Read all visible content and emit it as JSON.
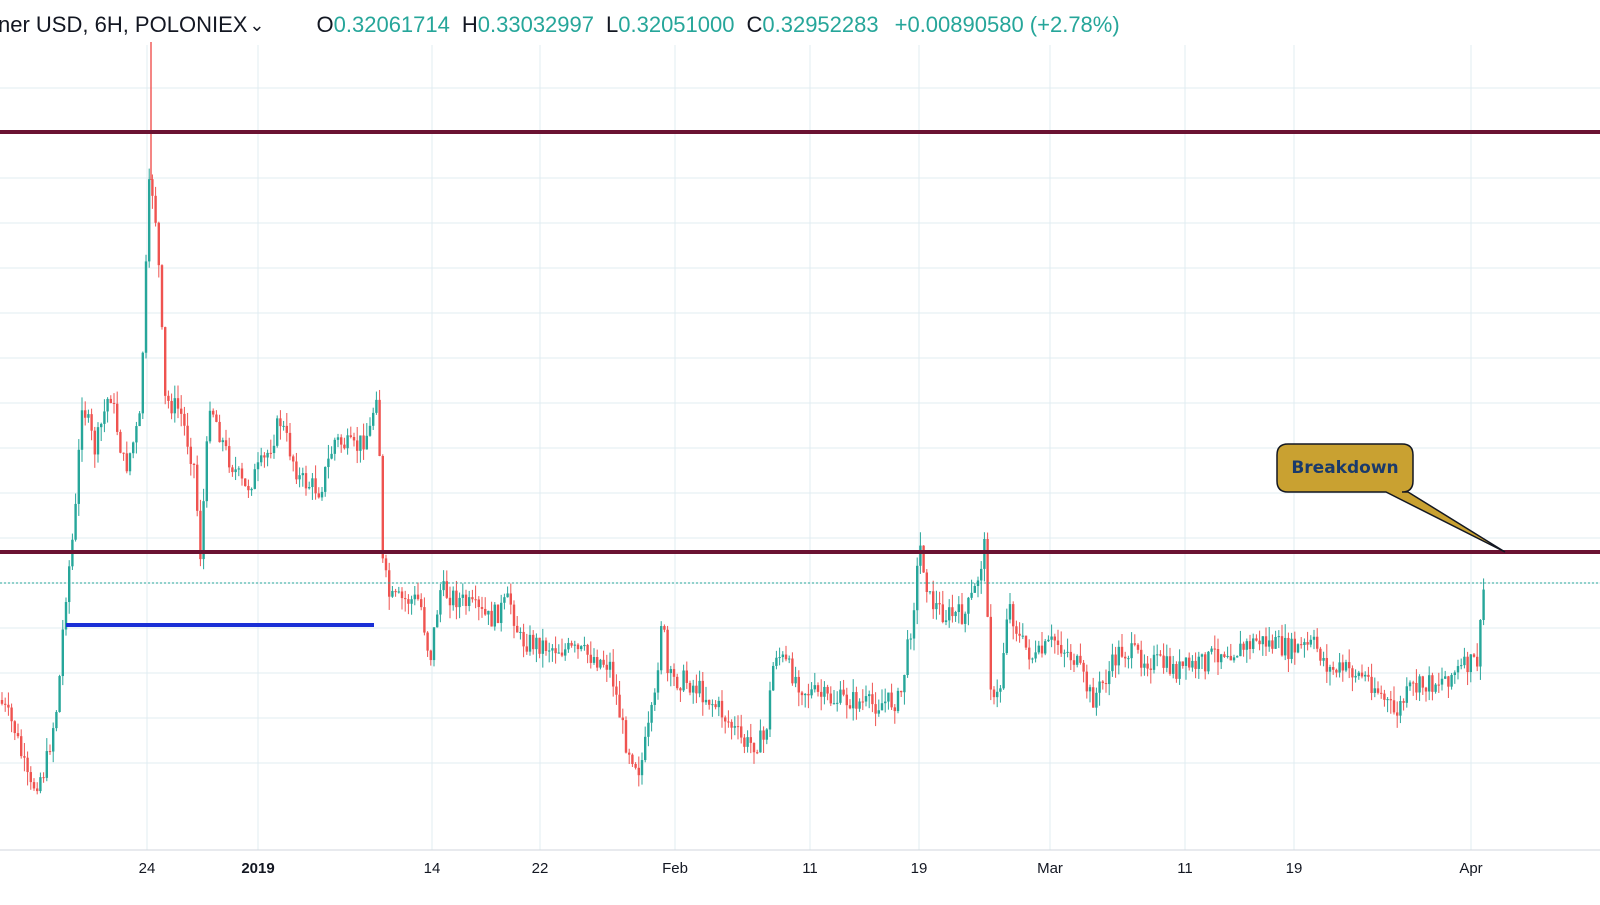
{
  "header": {
    "symbol": "ner USD, 6H, POLONIEX",
    "dropdown_icon": "chevron-down-icon",
    "open_label": "O",
    "open_value": "0.32061714",
    "high_label": "H",
    "high_value": "0.33032997",
    "low_label": "L",
    "low_value": "0.32051000",
    "close_label": "C",
    "close_value": "0.32952283",
    "change": "+0.00890580 (+2.78%)"
  },
  "colors": {
    "up": "#26a69a",
    "down": "#ef5350",
    "level_line": "#6b1232",
    "support_segment": "#1a2fd6",
    "callout_fill": "#c9a131",
    "callout_text": "#1a3a6b",
    "grid": "#e1ecf2",
    "last_price_line": "#26a69a"
  },
  "chart_data": {
    "type": "candlestick",
    "x_axis": {
      "tick_labels": [
        "24",
        "2019",
        "14",
        "22",
        "Feb",
        "11",
        "19",
        "Mar",
        "11",
        "19",
        "Apr"
      ],
      "bold_ticks": [
        "2019"
      ]
    },
    "y_axis": {
      "labels_visible": false
    },
    "grid": true,
    "last_close": 0.32952283,
    "horizontal_levels": [
      {
        "kind": "resistance_upper"
      },
      {
        "kind": "breakdown_level"
      }
    ],
    "support_segment": {
      "from": "~20 Dec",
      "to": "~10 Jan"
    },
    "annotations": [
      {
        "text": "Breakdown",
        "points_to": "breakdown_level near Apr"
      }
    ]
  }
}
